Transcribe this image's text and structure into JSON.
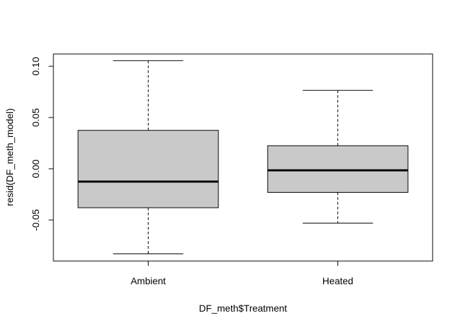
{
  "chart_data": {
    "type": "box",
    "xlabel": "DF_meth$Treatment",
    "ylabel": "resid(DF_meth_model)",
    "ylim": [
      -0.09,
      0.112
    ],
    "yticks": [
      -0.05,
      0.0,
      0.05,
      0.1
    ],
    "ytick_labels": [
      "-0.05",
      "0.00",
      "0.05",
      "0.10"
    ],
    "categories": [
      "Ambient",
      "Heated"
    ],
    "boxes": [
      {
        "name": "Ambient",
        "whisker_low": -0.083,
        "q1": -0.038,
        "median": -0.0125,
        "q3": 0.0375,
        "whisker_high": 0.1055
      },
      {
        "name": "Heated",
        "whisker_low": -0.053,
        "q1": -0.023,
        "median": -0.0015,
        "q3": 0.0225,
        "whisker_high": 0.0765
      }
    ],
    "colors": {
      "box_fill": "#c9c9c9",
      "stroke": "#000000"
    }
  }
}
